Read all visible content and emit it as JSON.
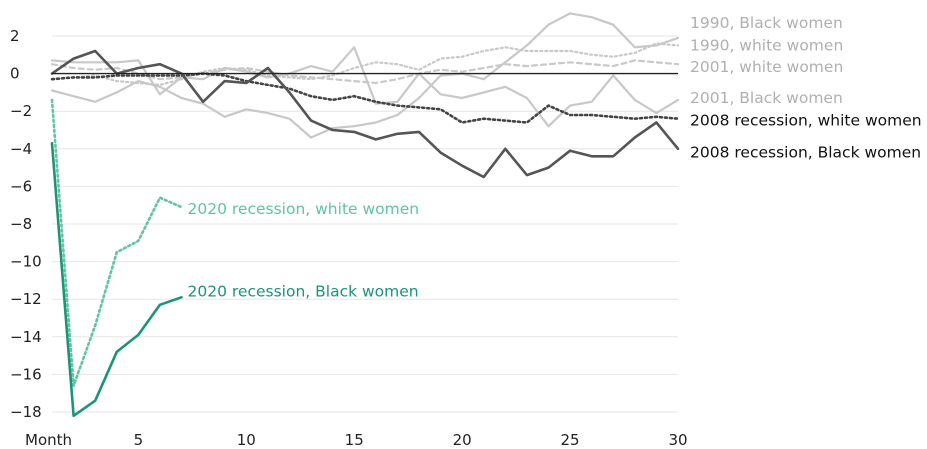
{
  "chart_data": {
    "type": "line",
    "xlabel": "Month",
    "xlim": [
      1,
      30
    ],
    "ylim": [
      -18,
      2
    ],
    "x_ticks": [
      5,
      10,
      15,
      20,
      25,
      30
    ],
    "y_ticks": [
      2,
      0,
      -2,
      -4,
      -6,
      -8,
      -10,
      -12,
      -14,
      -16,
      -18
    ],
    "y_tick_labels": [
      "2",
      "0",
      "−2",
      "−4",
      "−6",
      "−8",
      "−10",
      "−12",
      "−14",
      "−16",
      "−18"
    ],
    "grid": true,
    "series": [
      {
        "name": "1990, Black women",
        "color": "#c8c8c8",
        "dash": "solid",
        "x": [
          1,
          2,
          3,
          4,
          5,
          6,
          7,
          8,
          9,
          10,
          11,
          12,
          13,
          14,
          15,
          16,
          17,
          18,
          19,
          20,
          21,
          22,
          23,
          24,
          25,
          26,
          27,
          28,
          29,
          30
        ],
        "values": [
          -0.9,
          -1.2,
          -1.5,
          -1.0,
          -0.4,
          -0.7,
          -1.3,
          -1.6,
          -2.3,
          -1.9,
          -2.1,
          -2.4,
          -3.4,
          -2.9,
          -2.8,
          -2.6,
          -2.2,
          -1.3,
          -0.1,
          0.0,
          -0.3,
          0.6,
          1.5,
          2.6,
          3.2,
          3.0,
          2.6,
          1.4,
          1.5,
          1.9
        ],
        "label_y": 2.7
      },
      {
        "name": "1990, white women",
        "color": "#c8c8c8",
        "dash": "dot",
        "x": [
          1,
          2,
          3,
          4,
          5,
          6,
          7,
          8,
          9,
          10,
          11,
          12,
          13,
          14,
          15,
          16,
          17,
          18,
          19,
          20,
          21,
          22,
          23,
          24,
          25,
          26,
          27,
          28,
          29,
          30
        ],
        "values": [
          -0.3,
          -0.2,
          -0.1,
          -0.4,
          -0.5,
          -0.6,
          -0.3,
          0.1,
          0.3,
          0.2,
          -0.1,
          -0.2,
          -0.3,
          -0.1,
          0.3,
          0.6,
          0.5,
          0.2,
          0.8,
          0.9,
          1.2,
          1.4,
          1.2,
          1.2,
          1.2,
          1.0,
          0.9,
          1.1,
          1.6,
          1.5
        ],
        "label_y": 1.5
      },
      {
        "name": "2001, white women",
        "color": "#c8c8c8",
        "dash": "dash",
        "x": [
          1,
          2,
          3,
          4,
          5,
          6,
          7,
          8,
          9,
          10,
          11,
          12,
          13,
          14,
          15,
          16,
          17,
          18,
          19,
          20,
          21,
          22,
          23,
          24,
          25,
          26,
          27,
          28,
          29,
          30
        ],
        "values": [
          0.5,
          0.3,
          0.2,
          0.3,
          0.0,
          -0.3,
          -0.2,
          0.0,
          0.2,
          0.3,
          0.1,
          -0.1,
          -0.2,
          -0.3,
          -0.4,
          -0.5,
          -0.3,
          0.0,
          0.2,
          0.1,
          0.3,
          0.5,
          0.4,
          0.5,
          0.6,
          0.5,
          0.4,
          0.7,
          0.6,
          0.5
        ],
        "label_y": 0.35
      },
      {
        "name": "2001, Black women",
        "color": "#c8c8c8",
        "dash": "solid",
        "x": [
          1,
          2,
          3,
          4,
          5,
          6,
          7,
          8,
          9,
          10,
          11,
          12,
          13,
          14,
          15,
          16,
          17,
          18,
          19,
          20,
          21,
          22,
          23,
          24,
          25,
          26,
          27,
          28,
          29,
          30
        ],
        "values": [
          0.7,
          0.6,
          0.6,
          0.6,
          0.7,
          -1.1,
          -0.2,
          -0.3,
          0.3,
          0.1,
          -0.2,
          0.0,
          0.4,
          0.1,
          1.4,
          -1.6,
          -1.5,
          0.0,
          -1.1,
          -1.3,
          -1.0,
          -0.7,
          -1.3,
          -2.8,
          -1.7,
          -1.5,
          -0.1,
          -1.4,
          -2.1,
          -1.4
        ],
        "label_y": -1.3
      },
      {
        "name": "2008 recession, white women",
        "color": "#444444",
        "dash": "dot",
        "x": [
          1,
          2,
          3,
          4,
          5,
          6,
          7,
          8,
          9,
          10,
          11,
          12,
          13,
          14,
          15,
          16,
          17,
          18,
          19,
          20,
          21,
          22,
          23,
          24,
          25,
          26,
          27,
          28,
          29,
          30
        ],
        "values": [
          -0.3,
          -0.2,
          -0.2,
          -0.1,
          -0.1,
          -0.1,
          -0.1,
          0.0,
          -0.1,
          -0.4,
          -0.6,
          -0.8,
          -1.2,
          -1.4,
          -1.2,
          -1.5,
          -1.7,
          -1.8,
          -1.9,
          -2.6,
          -2.4,
          -2.5,
          -2.6,
          -1.7,
          -2.2,
          -2.2,
          -2.3,
          -2.4,
          -2.3,
          -2.4
        ],
        "label_y": -2.5
      },
      {
        "name": "2008 recession, Black women",
        "color": "#555555",
        "dash": "solid",
        "x": [
          1,
          2,
          3,
          4,
          5,
          6,
          7,
          8,
          9,
          10,
          11,
          12,
          13,
          14,
          15,
          16,
          17,
          18,
          19,
          20,
          21,
          22,
          23,
          24,
          25,
          26,
          27,
          28,
          29,
          30
        ],
        "values": [
          0.0,
          0.8,
          1.2,
          0.0,
          0.3,
          0.5,
          0.0,
          -1.5,
          -0.4,
          -0.5,
          0.3,
          -1.0,
          -2.5,
          -3.0,
          -3.1,
          -3.5,
          -3.2,
          -3.1,
          -4.2,
          -4.9,
          -5.5,
          -4.0,
          -5.4,
          -5.0,
          -4.1,
          -4.4,
          -4.4,
          -3.4,
          -2.6,
          -4.0
        ],
        "label_y": -4.2
      },
      {
        "name": "2020 recession, white women",
        "color": "#5fc69f",
        "dash": "dot",
        "x": [
          1,
          2,
          3,
          4,
          5,
          6,
          7
        ],
        "values": [
          -1.4,
          -16.6,
          -13.4,
          -9.5,
          -8.9,
          -6.6,
          -7.1
        ],
        "label_y": -7.2
      },
      {
        "name": "2020 recession, Black women",
        "color": "#1a9577",
        "dash": "solid",
        "x": [
          1,
          2,
          3,
          4,
          5,
          6,
          7
        ],
        "values": [
          -3.7,
          -18.2,
          -17.4,
          -14.8,
          -13.9,
          -12.3,
          -11.9
        ],
        "label_y": -11.6
      }
    ]
  }
}
